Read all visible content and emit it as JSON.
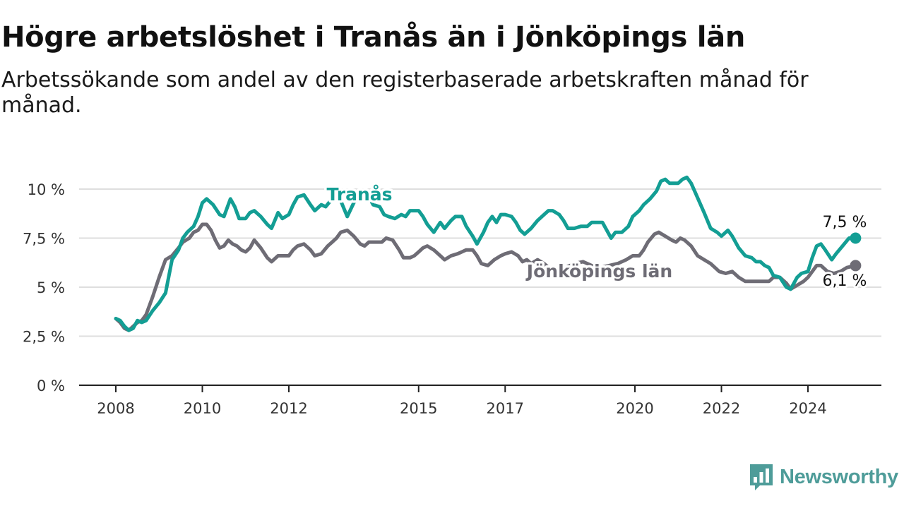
{
  "header": {
    "title": "Högre arbetslöshet i Tranås än i Jönköpings län",
    "subtitle": "Arbetssökande som andel av den registerbaserade arbetskraften månad för månad."
  },
  "brand": {
    "name": "Newsworthy",
    "icon": "newsworthy-logo-icon",
    "color": "#4e9c99"
  },
  "chart_data": {
    "type": "line",
    "title": "Högre arbetslöshet i Tranås än i Jönköpings län",
    "subtitle": "Arbetssökande som andel av den registerbaserade arbetskraften månad för månad.",
    "xlabel": "",
    "ylabel": "",
    "x_ticks": [
      {
        "value": 2008,
        "label": "2008"
      },
      {
        "value": 2010,
        "label": "2010"
      },
      {
        "value": 2012,
        "label": "2012"
      },
      {
        "value": 2015,
        "label": "2015"
      },
      {
        "value": 2017,
        "label": "2017"
      },
      {
        "value": 2020,
        "label": "2020"
      },
      {
        "value": 2022,
        "label": "2022"
      },
      {
        "value": 2024,
        "label": "2024"
      }
    ],
    "y_ticks": [
      {
        "value": 0,
        "label": "0 %"
      },
      {
        "value": 2.5,
        "label": "2,5 %"
      },
      {
        "value": 5,
        "label": "5 %"
      },
      {
        "value": 7.5,
        "label": "7,5 %"
      },
      {
        "value": 10,
        "label": "10 %"
      }
    ],
    "xlim": [
      2007.2,
      2025.7
    ],
    "ylim": [
      0,
      10.5
    ],
    "grid": true,
    "series": [
      {
        "name": "Tranås",
        "color": "#139e94",
        "end_label": "7,5 %",
        "points": [
          [
            2008.0,
            3.4
          ],
          [
            2008.1,
            3.3
          ],
          [
            2008.2,
            3.0
          ],
          [
            2008.3,
            2.8
          ],
          [
            2008.4,
            2.9
          ],
          [
            2008.5,
            3.3
          ],
          [
            2008.6,
            3.2
          ],
          [
            2008.7,
            3.3
          ],
          [
            2008.85,
            3.8
          ],
          [
            2009.0,
            4.2
          ],
          [
            2009.15,
            4.7
          ],
          [
            2009.3,
            6.4
          ],
          [
            2009.45,
            6.9
          ],
          [
            2009.55,
            7.5
          ],
          [
            2009.65,
            7.8
          ],
          [
            2009.8,
            8.1
          ],
          [
            2009.9,
            8.6
          ],
          [
            2010.0,
            9.3
          ],
          [
            2010.1,
            9.5
          ],
          [
            2010.25,
            9.2
          ],
          [
            2010.4,
            8.7
          ],
          [
            2010.5,
            8.6
          ],
          [
            2010.6,
            9.2
          ],
          [
            2010.65,
            9.5
          ],
          [
            2010.75,
            9.1
          ],
          [
            2010.85,
            8.5
          ],
          [
            2011.0,
            8.5
          ],
          [
            2011.1,
            8.8
          ],
          [
            2011.2,
            8.9
          ],
          [
            2011.35,
            8.6
          ],
          [
            2011.5,
            8.2
          ],
          [
            2011.6,
            8.0
          ],
          [
            2011.75,
            8.8
          ],
          [
            2011.85,
            8.5
          ],
          [
            2012.0,
            8.7
          ],
          [
            2012.1,
            9.2
          ],
          [
            2012.2,
            9.6
          ],
          [
            2012.35,
            9.7
          ],
          [
            2012.5,
            9.2
          ],
          [
            2012.6,
            8.9
          ],
          [
            2012.75,
            9.2
          ],
          [
            2012.85,
            9.1
          ],
          [
            2013.0,
            9.5
          ],
          [
            2013.1,
            9.7
          ],
          [
            2013.2,
            9.4
          ],
          [
            2013.35,
            8.6
          ],
          [
            2013.5,
            9.3
          ],
          [
            2013.65,
            9.8
          ],
          [
            2013.8,
            9.8
          ],
          [
            2013.95,
            9.2
          ],
          [
            2014.1,
            9.1
          ],
          [
            2014.2,
            8.7
          ],
          [
            2014.3,
            8.6
          ],
          [
            2014.45,
            8.5
          ],
          [
            2014.6,
            8.7
          ],
          [
            2014.7,
            8.6
          ],
          [
            2014.8,
            8.9
          ],
          [
            2014.9,
            8.9
          ],
          [
            2015.0,
            8.9
          ],
          [
            2015.1,
            8.6
          ],
          [
            2015.2,
            8.2
          ],
          [
            2015.35,
            7.8
          ],
          [
            2015.5,
            8.3
          ],
          [
            2015.6,
            8.0
          ],
          [
            2015.75,
            8.4
          ],
          [
            2015.85,
            8.6
          ],
          [
            2016.0,
            8.6
          ],
          [
            2016.1,
            8.1
          ],
          [
            2016.25,
            7.6
          ],
          [
            2016.35,
            7.2
          ],
          [
            2016.5,
            7.8
          ],
          [
            2016.6,
            8.3
          ],
          [
            2016.7,
            8.6
          ],
          [
            2016.8,
            8.3
          ],
          [
            2016.9,
            8.7
          ],
          [
            2017.0,
            8.7
          ],
          [
            2017.15,
            8.6
          ],
          [
            2017.25,
            8.3
          ],
          [
            2017.35,
            7.9
          ],
          [
            2017.45,
            7.7
          ],
          [
            2017.6,
            8.0
          ],
          [
            2017.75,
            8.4
          ],
          [
            2017.9,
            8.7
          ],
          [
            2018.0,
            8.9
          ],
          [
            2018.1,
            8.9
          ],
          [
            2018.25,
            8.7
          ],
          [
            2018.35,
            8.4
          ],
          [
            2018.45,
            8.0
          ],
          [
            2018.6,
            8.0
          ],
          [
            2018.75,
            8.1
          ],
          [
            2018.9,
            8.1
          ],
          [
            2019.0,
            8.3
          ],
          [
            2019.1,
            8.3
          ],
          [
            2019.25,
            8.3
          ],
          [
            2019.35,
            7.9
          ],
          [
            2019.45,
            7.5
          ],
          [
            2019.55,
            7.8
          ],
          [
            2019.7,
            7.8
          ],
          [
            2019.85,
            8.1
          ],
          [
            2019.95,
            8.6
          ],
          [
            2020.1,
            8.9
          ],
          [
            2020.2,
            9.2
          ],
          [
            2020.35,
            9.5
          ],
          [
            2020.5,
            9.9
          ],
          [
            2020.6,
            10.4
          ],
          [
            2020.7,
            10.5
          ],
          [
            2020.8,
            10.3
          ],
          [
            2020.9,
            10.3
          ],
          [
            2021.0,
            10.3
          ],
          [
            2021.1,
            10.5
          ],
          [
            2021.2,
            10.6
          ],
          [
            2021.3,
            10.3
          ],
          [
            2021.4,
            9.8
          ],
          [
            2021.5,
            9.3
          ],
          [
            2021.6,
            8.8
          ],
          [
            2021.75,
            8.0
          ],
          [
            2021.9,
            7.8
          ],
          [
            2022.0,
            7.6
          ],
          [
            2022.15,
            7.9
          ],
          [
            2022.25,
            7.6
          ],
          [
            2022.4,
            7.0
          ],
          [
            2022.55,
            6.6
          ],
          [
            2022.7,
            6.5
          ],
          [
            2022.8,
            6.3
          ],
          [
            2022.9,
            6.3
          ],
          [
            2023.0,
            6.1
          ],
          [
            2023.1,
            6.0
          ],
          [
            2023.2,
            5.6
          ],
          [
            2023.35,
            5.5
          ],
          [
            2023.5,
            5.0
          ],
          [
            2023.6,
            4.9
          ],
          [
            2023.75,
            5.5
          ],
          [
            2023.85,
            5.7
          ],
          [
            2024.0,
            5.8
          ],
          [
            2024.1,
            6.5
          ],
          [
            2024.2,
            7.1
          ],
          [
            2024.3,
            7.2
          ],
          [
            2024.4,
            6.9
          ],
          [
            2024.55,
            6.4
          ],
          [
            2024.65,
            6.7
          ],
          [
            2024.8,
            7.1
          ],
          [
            2024.95,
            7.5
          ],
          [
            2025.1,
            7.5
          ]
        ]
      },
      {
        "name": "Jönköpings län",
        "color": "#6e6c75",
        "end_label": "6,1 %",
        "points": [
          [
            2008.0,
            3.4
          ],
          [
            2008.1,
            3.2
          ],
          [
            2008.2,
            2.9
          ],
          [
            2008.3,
            2.8
          ],
          [
            2008.4,
            3.0
          ],
          [
            2008.5,
            3.2
          ],
          [
            2008.6,
            3.3
          ],
          [
            2008.7,
            3.6
          ],
          [
            2008.85,
            4.5
          ],
          [
            2009.0,
            5.5
          ],
          [
            2009.15,
            6.4
          ],
          [
            2009.3,
            6.6
          ],
          [
            2009.45,
            7.0
          ],
          [
            2009.55,
            7.3
          ],
          [
            2009.7,
            7.5
          ],
          [
            2009.8,
            7.8
          ],
          [
            2009.9,
            7.9
          ],
          [
            2010.0,
            8.2
          ],
          [
            2010.1,
            8.2
          ],
          [
            2010.2,
            7.9
          ],
          [
            2010.3,
            7.4
          ],
          [
            2010.4,
            7.0
          ],
          [
            2010.5,
            7.1
          ],
          [
            2010.6,
            7.4
          ],
          [
            2010.7,
            7.2
          ],
          [
            2010.8,
            7.1
          ],
          [
            2010.9,
            6.9
          ],
          [
            2011.0,
            6.8
          ],
          [
            2011.1,
            7.0
          ],
          [
            2011.2,
            7.4
          ],
          [
            2011.35,
            7.0
          ],
          [
            2011.5,
            6.5
          ],
          [
            2011.6,
            6.3
          ],
          [
            2011.75,
            6.6
          ],
          [
            2011.9,
            6.6
          ],
          [
            2012.0,
            6.6
          ],
          [
            2012.1,
            6.9
          ],
          [
            2012.2,
            7.1
          ],
          [
            2012.35,
            7.2
          ],
          [
            2012.5,
            6.9
          ],
          [
            2012.6,
            6.6
          ],
          [
            2012.75,
            6.7
          ],
          [
            2012.9,
            7.1
          ],
          [
            2013.0,
            7.3
          ],
          [
            2013.1,
            7.5
          ],
          [
            2013.2,
            7.8
          ],
          [
            2013.35,
            7.9
          ],
          [
            2013.5,
            7.6
          ],
          [
            2013.65,
            7.2
          ],
          [
            2013.75,
            7.1
          ],
          [
            2013.85,
            7.3
          ],
          [
            2014.0,
            7.3
          ],
          [
            2014.15,
            7.3
          ],
          [
            2014.25,
            7.5
          ],
          [
            2014.4,
            7.4
          ],
          [
            2014.55,
            6.9
          ],
          [
            2014.65,
            6.5
          ],
          [
            2014.8,
            6.5
          ],
          [
            2014.9,
            6.6
          ],
          [
            2015.0,
            6.8
          ],
          [
            2015.1,
            7.0
          ],
          [
            2015.2,
            7.1
          ],
          [
            2015.35,
            6.9
          ],
          [
            2015.5,
            6.6
          ],
          [
            2015.6,
            6.4
          ],
          [
            2015.75,
            6.6
          ],
          [
            2015.9,
            6.7
          ],
          [
            2016.0,
            6.8
          ],
          [
            2016.1,
            6.9
          ],
          [
            2016.25,
            6.9
          ],
          [
            2016.35,
            6.6
          ],
          [
            2016.45,
            6.2
          ],
          [
            2016.6,
            6.1
          ],
          [
            2016.75,
            6.4
          ],
          [
            2016.9,
            6.6
          ],
          [
            2017.0,
            6.7
          ],
          [
            2017.15,
            6.8
          ],
          [
            2017.3,
            6.6
          ],
          [
            2017.4,
            6.3
          ],
          [
            2017.5,
            6.4
          ],
          [
            2017.6,
            6.2
          ],
          [
            2017.75,
            6.4
          ],
          [
            2017.9,
            6.2
          ],
          [
            2018.0,
            6.0
          ],
          [
            2018.2,
            5.9
          ],
          [
            2018.4,
            6.0
          ],
          [
            2018.6,
            6.2
          ],
          [
            2018.8,
            6.3
          ],
          [
            2019.0,
            6.1
          ],
          [
            2019.2,
            6.0
          ],
          [
            2019.4,
            6.1
          ],
          [
            2019.6,
            6.2
          ],
          [
            2019.8,
            6.4
          ],
          [
            2019.95,
            6.6
          ],
          [
            2020.1,
            6.6
          ],
          [
            2020.2,
            6.9
          ],
          [
            2020.3,
            7.3
          ],
          [
            2020.45,
            7.7
          ],
          [
            2020.55,
            7.8
          ],
          [
            2020.7,
            7.6
          ],
          [
            2020.85,
            7.4
          ],
          [
            2020.95,
            7.3
          ],
          [
            2021.05,
            7.5
          ],
          [
            2021.15,
            7.4
          ],
          [
            2021.3,
            7.1
          ],
          [
            2021.45,
            6.6
          ],
          [
            2021.6,
            6.4
          ],
          [
            2021.75,
            6.2
          ],
          [
            2021.85,
            6.0
          ],
          [
            2021.95,
            5.8
          ],
          [
            2022.1,
            5.7
          ],
          [
            2022.25,
            5.8
          ],
          [
            2022.4,
            5.5
          ],
          [
            2022.55,
            5.3
          ],
          [
            2022.7,
            5.3
          ],
          [
            2022.85,
            5.3
          ],
          [
            2023.0,
            5.3
          ],
          [
            2023.1,
            5.3
          ],
          [
            2023.2,
            5.5
          ],
          [
            2023.35,
            5.5
          ],
          [
            2023.5,
            5.2
          ],
          [
            2023.6,
            4.9
          ],
          [
            2023.75,
            5.1
          ],
          [
            2023.9,
            5.3
          ],
          [
            2024.0,
            5.5
          ],
          [
            2024.1,
            5.8
          ],
          [
            2024.2,
            6.1
          ],
          [
            2024.3,
            6.1
          ],
          [
            2024.45,
            5.8
          ],
          [
            2024.6,
            5.7
          ],
          [
            2024.75,
            5.8
          ],
          [
            2024.9,
            6.0
          ],
          [
            2025.1,
            6.1
          ]
        ]
      }
    ]
  }
}
